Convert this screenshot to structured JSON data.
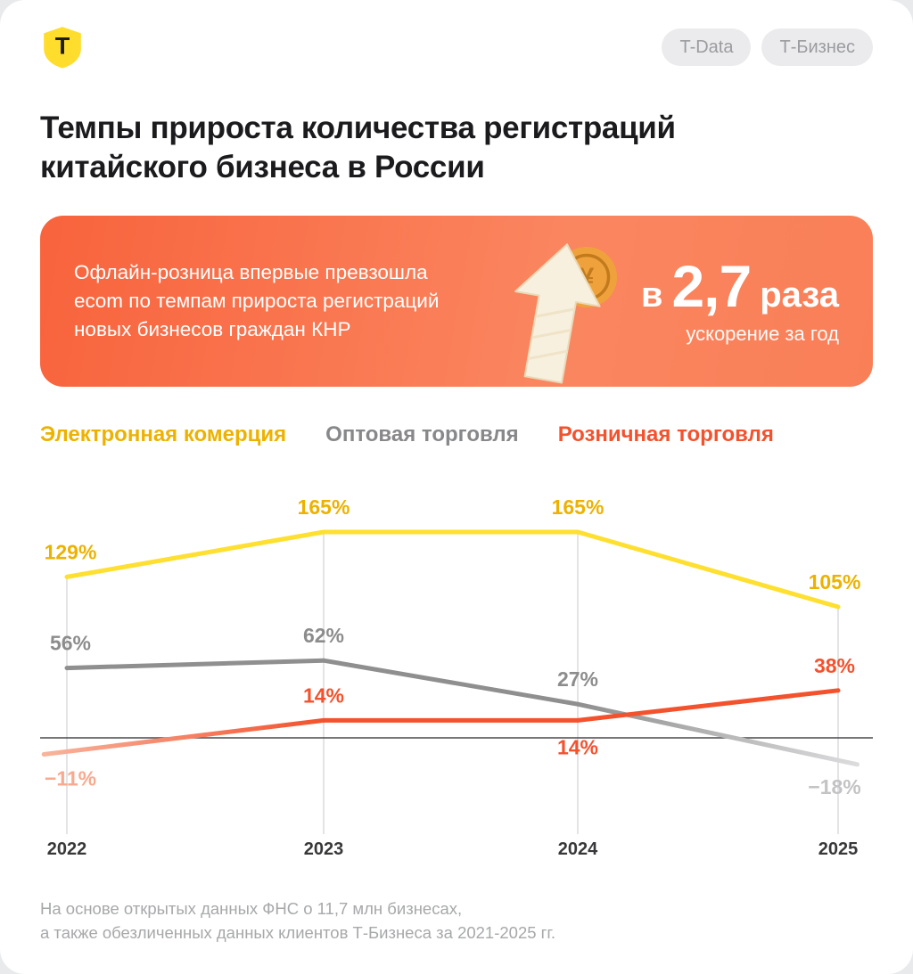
{
  "brand": {
    "logo": "t-bank-shield-icon",
    "logo_letter": "Т"
  },
  "header": {
    "badges": [
      {
        "label": "T-Data"
      },
      {
        "label": "Т-Бизнес"
      }
    ]
  },
  "title": {
    "line1": "Темпы прироста количества регистраций",
    "line2": "китайского бизнеса в России"
  },
  "callout": {
    "lines": [
      "Офлайн-розница впервые превзошла",
      "ecom по темпам прироста регистраций",
      "новых бизнесов граждан КНР"
    ],
    "metric_prefix": "в",
    "metric_value": "2,7",
    "metric_suffix": "раза",
    "caption": "ускорение за год",
    "illustration": "arrow-up-with-yuan-coin",
    "gradient_from": "#F8633C",
    "gradient_to": "#FB8C66"
  },
  "legend": [
    {
      "label": "Электронная комерция",
      "color": "#EDB200"
    },
    {
      "label": "Оптовая торговля",
      "color": "#87888A"
    },
    {
      "label": "Розничная торговля",
      "color": "#F4512D"
    }
  ],
  "chart_data": {
    "type": "line",
    "title": "Темпы прироста количества регистраций китайского бизнеса в России",
    "x": [
      "2022",
      "2023",
      "2024",
      "2025"
    ],
    "baseline": 0,
    "grid": "vertical",
    "legend_position": "top",
    "unit": "%",
    "series": [
      {
        "name": "Электронная комерция",
        "values": [
          129,
          165,
          165,
          105
        ],
        "labels": [
          "129%",
          "165%",
          "165%",
          "105%"
        ],
        "color": "#FFDF2F",
        "fade": null,
        "fade_color": null,
        "label_colors": [
          "#EDB200",
          "#EDB200",
          "#EDB200",
          "#EDB200"
        ],
        "label_positions": [
          "above",
          "above",
          "above",
          "above"
        ]
      },
      {
        "name": "Оптовая торговля",
        "values": [
          56,
          62,
          27,
          -18
        ],
        "labels": [
          "56%",
          "62%",
          "27%",
          "−18%"
        ],
        "color": "#8F8F8F",
        "fade": "end",
        "fade_color": "#DCDCDE",
        "label_colors": [
          "#8C8C8C",
          "#8C8C8C",
          "#8C8C8C",
          "#C3C3C5"
        ],
        "label_positions": [
          "above",
          "above",
          "above",
          "below"
        ]
      },
      {
        "name": "Розничная торговля",
        "values": [
          -11,
          14,
          14,
          38
        ],
        "labels": [
          "−11%",
          "14%",
          "14%",
          "38%"
        ],
        "color": "#F4512D",
        "fade": "start",
        "fade_color": "#F8B49C",
        "label_colors": [
          "#F9A98F",
          "#F4512D",
          "#F4512D",
          "#F4512D"
        ],
        "label_positions": [
          "below",
          "above",
          "below",
          "above"
        ]
      }
    ]
  },
  "footer": {
    "line1": "На основе открытых данных ФНС о 11,7 млн бизнесах,",
    "line2": "а также обезличенных данных клиентов Т-Бизнеса за 2021-2025 гг."
  }
}
